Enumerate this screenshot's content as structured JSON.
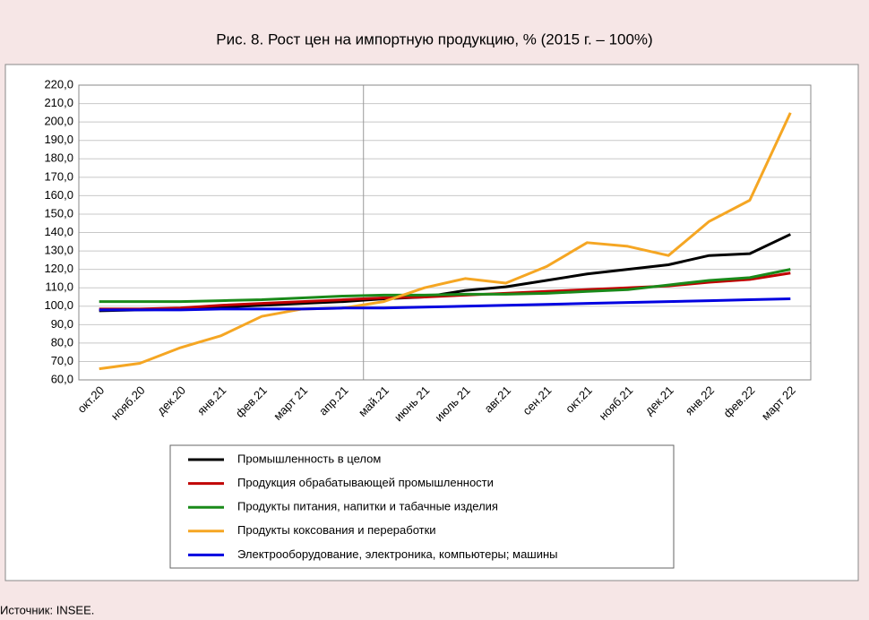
{
  "chart_data": {
    "type": "line",
    "title": "Рис. 8. Рост цен на импортную продукцию, % (2015 г. – 100%)",
    "source": "Источник: INSEE.",
    "categories": [
      "окт.20",
      "нояб.20",
      "дек.20",
      "янв.21",
      "фев.21",
      "март 21",
      "апр.21",
      "май.21",
      "июнь 21",
      "июль 21",
      "авг.21",
      "сен.21",
      "окт.21",
      "нояб.21",
      "дек.21",
      "янв.22",
      "фев.22",
      "март 22"
    ],
    "series": [
      {
        "name": "Промышленность в целом",
        "color": "#000000",
        "values": [
          97.5,
          98,
          98.5,
          99.5,
          100.5,
          101.5,
          102.5,
          104,
          105,
          108.5,
          110.5,
          114,
          117.5,
          120,
          122.5,
          127.5,
          128.5,
          139
        ]
      },
      {
        "name": "Продукция обрабатывающей промышленности",
        "color": "#c00000",
        "values": [
          98.5,
          98.5,
          99,
          100.5,
          101.5,
          102.5,
          103.5,
          104.5,
          105,
          106,
          107,
          108,
          109,
          110,
          111,
          113,
          114.5,
          118
        ]
      },
      {
        "name": "Продукты питания, напитки и табачные изделия",
        "color": "#1a8a1a",
        "values": [
          102.5,
          102.5,
          102.5,
          103,
          103.5,
          104.5,
          105.5,
          106,
          106,
          106.5,
          106.5,
          107,
          108,
          109,
          111.5,
          114,
          115.5,
          120
        ]
      },
      {
        "name": "Продукты коксования и переработки",
        "color": "#f5a623",
        "values": [
          66,
          69,
          77.5,
          84,
          94.5,
          98.5,
          99,
          102.5,
          110,
          115,
          112.5,
          121.5,
          134.5,
          132.5,
          127.5,
          146,
          157.5,
          205
        ]
      },
      {
        "name": "Электрооборудование, электроника, компьютеры; машины",
        "color": "#0000e0",
        "values": [
          98,
          98,
          98,
          98.5,
          98.5,
          98.5,
          99,
          99,
          99.5,
          100,
          100.5,
          101,
          101.5,
          102,
          102.5,
          103,
          103.5,
          104
        ]
      }
    ],
    "ylim": [
      60,
      220
    ],
    "yticks": [
      {
        "value": 60,
        "label": "60,0"
      },
      {
        "value": 70,
        "label": "70,0"
      },
      {
        "value": 80,
        "label": "80,0"
      },
      {
        "value": 90,
        "label": "90,0"
      },
      {
        "value": 100,
        "label": "100,0"
      },
      {
        "value": 110,
        "label": "110,0"
      },
      {
        "value": 120,
        "label": "120,0"
      },
      {
        "value": 130,
        "label": "130,0"
      },
      {
        "value": 140,
        "label": "140,0"
      },
      {
        "value": 150,
        "label": "150,0"
      },
      {
        "value": 160,
        "label": "160,0"
      },
      {
        "value": 170,
        "label": "170,0"
      },
      {
        "value": 180,
        "label": "180,0"
      },
      {
        "value": 190,
        "label": "190,0"
      },
      {
        "value": 200,
        "label": "200,0"
      },
      {
        "value": 210,
        "label": "210,0"
      },
      {
        "value": 220,
        "label": "220,0"
      }
    ],
    "grid": true
  }
}
